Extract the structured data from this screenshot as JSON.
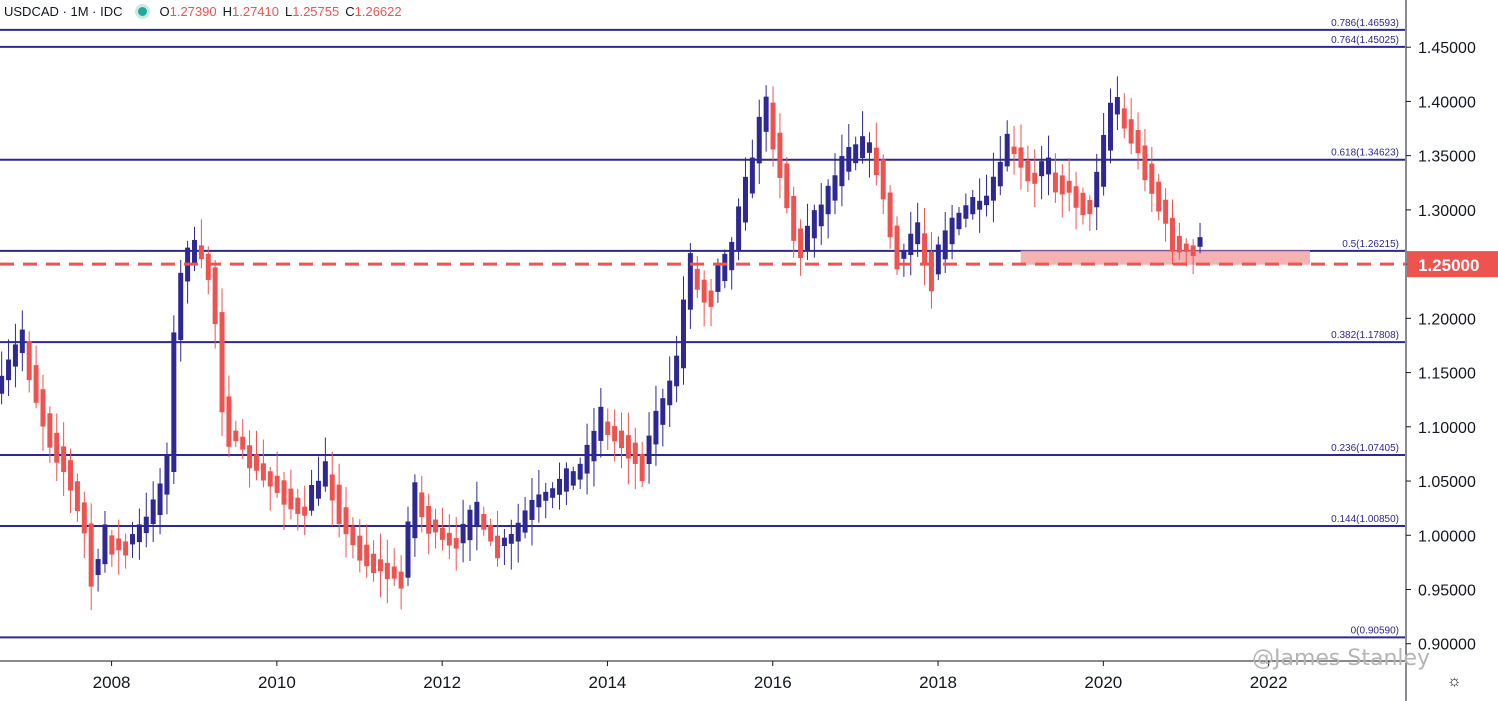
{
  "header": {
    "symbol": "USDCAD",
    "interval": "1M",
    "source": "IDC",
    "open_label": "O",
    "open": "1.27390",
    "high_label": "H",
    "high": "1.27410",
    "low_label": "L",
    "low": "1.25755",
    "close_label": "C",
    "close": "1.26622"
  },
  "watermark": "@James Stanley",
  "colors": {
    "up": "#2e2893",
    "down": "#ef5350",
    "fib_line": "#2e2893",
    "price_line": "#ef5350",
    "zone": "#f5a5a5",
    "text": "#131722"
  },
  "chart_data": {
    "type": "candlestick",
    "symbol": "USDCAD",
    "interval": "1M",
    "xlim": [
      2006.65,
      2023.65
    ],
    "ylim": [
      0.885,
      1.4935
    ],
    "x_ticks": [
      2008,
      2010,
      2012,
      2014,
      2016,
      2018,
      2020,
      2022
    ],
    "y_ticks": [
      "1.45000",
      "1.40000",
      "1.35000",
      "1.30000",
      "1.25000",
      "1.20000",
      "1.15000",
      "1.10000",
      "1.05000",
      "1.00000",
      "0.95000",
      "0.90000"
    ],
    "fib_levels": [
      {
        "label": "0.786(1.46593)",
        "value": 1.46593
      },
      {
        "label": "0.764(1.45025)",
        "value": 1.45025
      },
      {
        "label": "0.618(1.34623)",
        "value": 1.34623
      },
      {
        "label": "0.5(1.26215)",
        "value": 1.26215
      },
      {
        "label": "0.382(1.17808)",
        "value": 1.17808
      },
      {
        "label": "0.236(1.07405)",
        "value": 1.07405
      },
      {
        "label": "0.144(1.00850)",
        "value": 1.0085
      },
      {
        "label": "0(0.90590)",
        "value": 0.9059
      }
    ],
    "price_line": {
      "value": 1.25,
      "label": "1.25000"
    },
    "zone": {
      "x_start": 2019.0,
      "x_end": 2022.5,
      "y_low": 1.2495,
      "y_high": 1.2625
    },
    "anchors": [
      [
        2006.6,
        1.12
      ],
      [
        2006.9,
        1.165
      ],
      [
        2007.0,
        1.18
      ],
      [
        2007.3,
        1.1
      ],
      [
        2007.5,
        1.07
      ],
      [
        2007.8,
        1.0
      ],
      [
        2007.85,
        0.95
      ],
      [
        2008.0,
        1.0
      ],
      [
        2008.3,
        0.99
      ],
      [
        2008.6,
        1.02
      ],
      [
        2008.8,
        1.07
      ],
      [
        2008.85,
        1.22
      ],
      [
        2009.1,
        1.27
      ],
      [
        2009.3,
        1.24
      ],
      [
        2009.45,
        1.1
      ],
      [
        2009.6,
        1.09
      ],
      [
        2009.9,
        1.06
      ],
      [
        2010.1,
        1.05
      ],
      [
        2010.4,
        1.02
      ],
      [
        2010.7,
        1.06
      ],
      [
        2010.9,
        1.01
      ],
      [
        2011.2,
        0.98
      ],
      [
        2011.45,
        0.97
      ],
      [
        2011.6,
        0.96
      ],
      [
        2011.75,
        1.04
      ],
      [
        2011.95,
        1.01
      ],
      [
        2012.3,
        0.99
      ],
      [
        2012.5,
        1.02
      ],
      [
        2012.75,
        0.99
      ],
      [
        2012.95,
        0.995
      ],
      [
        2013.2,
        1.03
      ],
      [
        2013.5,
        1.04
      ],
      [
        2013.8,
        1.06
      ],
      [
        2014.0,
        1.105
      ],
      [
        2014.3,
        1.09
      ],
      [
        2014.5,
        1.065
      ],
      [
        2014.8,
        1.13
      ],
      [
        2014.95,
        1.16
      ],
      [
        2015.05,
        1.25
      ],
      [
        2015.3,
        1.22
      ],
      [
        2015.55,
        1.25
      ],
      [
        2015.8,
        1.33
      ],
      [
        2016.0,
        1.4
      ],
      [
        2016.15,
        1.35
      ],
      [
        2016.4,
        1.26
      ],
      [
        2016.7,
        1.3
      ],
      [
        2016.95,
        1.34
      ],
      [
        2017.3,
        1.36
      ],
      [
        2017.6,
        1.25
      ],
      [
        2017.85,
        1.28
      ],
      [
        2018.0,
        1.24
      ],
      [
        2018.3,
        1.29
      ],
      [
        2018.7,
        1.31
      ],
      [
        2018.95,
        1.365
      ],
      [
        2019.2,
        1.33
      ],
      [
        2019.45,
        1.335
      ],
      [
        2019.7,
        1.32
      ],
      [
        2019.95,
        1.3
      ],
      [
        2020.2,
        1.4
      ],
      [
        2020.45,
        1.37
      ],
      [
        2020.7,
        1.32
      ],
      [
        2020.95,
        1.27
      ],
      [
        2021.15,
        1.266
      ]
    ],
    "watermark": "@James Stanley"
  }
}
